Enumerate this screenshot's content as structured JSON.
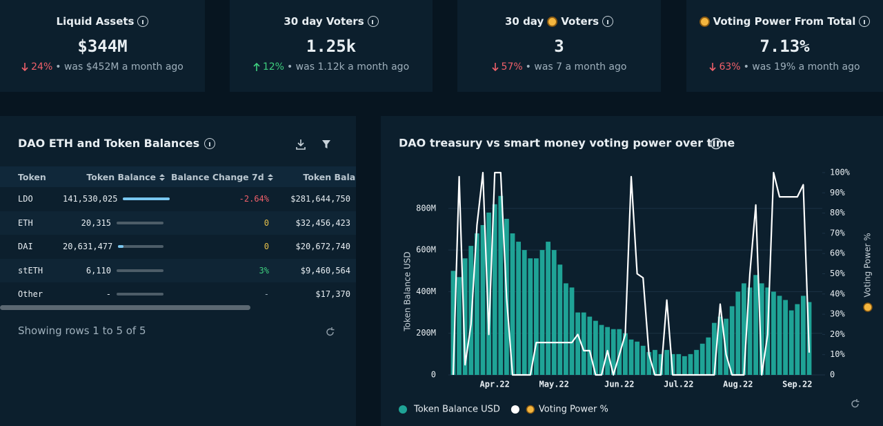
{
  "cards": [
    {
      "title": "Liquid Assets",
      "value": "$344M",
      "change": "24%",
      "direction": "down",
      "note": "• was $452M a month ago"
    },
    {
      "title": "30 day Voters",
      "value": "1.25k",
      "change": "12%",
      "direction": "up",
      "note": "• was 1.12k a month ago"
    },
    {
      "title": "30 day",
      "title_after_icon": "Voters",
      "value": "3",
      "change": "57%",
      "direction": "down",
      "note": "• was 7 a month ago"
    },
    {
      "title_after_icon": "Voting Power From Total",
      "value": "7.13%",
      "change": "63%",
      "direction": "down",
      "note": "• was 19% a month ago"
    }
  ],
  "table": {
    "title": "DAO ETH and Token Balances",
    "columns": [
      "Token",
      "Token Balance",
      "Balance Change 7d",
      "Token Balance"
    ],
    "rows": [
      [
        "LDO",
        "141,530,025",
        "-2.64%",
        "$281,644,750"
      ],
      [
        "ETH",
        "20,315",
        "0",
        "$32,456,423"
      ],
      [
        "DAI",
        "20,631,477",
        "0",
        "$20,672,740"
      ],
      [
        "stETH",
        "6,110",
        "3%",
        "$9,460,564"
      ],
      [
        "Other",
        "-",
        "-",
        "$17,370"
      ]
    ],
    "balance_share": [
      1,
      0,
      0.12,
      0,
      0
    ],
    "footer": "Showing rows 1 to 5 of 5"
  },
  "chart_data": {
    "type": "bar",
    "title": "DAO treasury vs smart money voting power over time",
    "ylabel": "Token Balance USD",
    "y2label": "Voting Power %",
    "categories": [
      null,
      null,
      null,
      null,
      null,
      null,
      null,
      "Apr.22",
      null,
      null,
      null,
      null,
      null,
      null,
      null,
      null,
      null,
      "May.22",
      null,
      null,
      null,
      null,
      null,
      null,
      null,
      null,
      null,
      null,
      "Jun.22",
      null,
      null,
      null,
      null,
      null,
      null,
      null,
      null,
      null,
      "Jul.22",
      null,
      null,
      null,
      null,
      null,
      null,
      null,
      null,
      null,
      "Aug.22",
      null,
      null,
      null,
      null,
      null,
      null,
      null,
      null,
      null,
      "Sep.22",
      null,
      null
    ],
    "series": [
      {
        "name": "Token Balance USD",
        "type": "bar",
        "color": "#1fa396",
        "values": [
          500000000,
          470000000,
          560000000,
          620000000,
          680000000,
          720000000,
          780000000,
          820000000,
          860000000,
          750000000,
          680000000,
          640000000,
          600000000,
          560000000,
          560000000,
          600000000,
          640000000,
          600000000,
          530000000,
          440000000,
          420000000,
          300000000,
          300000000,
          280000000,
          260000000,
          240000000,
          230000000,
          220000000,
          220000000,
          200000000,
          170000000,
          160000000,
          140000000,
          110000000,
          120000000,
          100000000,
          120000000,
          100000000,
          100000000,
          90000000,
          100000000,
          120000000,
          150000000,
          180000000,
          250000000,
          280000000,
          270000000,
          330000000,
          400000000,
          440000000,
          420000000,
          480000000,
          440000000,
          420000000,
          400000000,
          380000000,
          360000000,
          310000000,
          340000000,
          380000000,
          350000000
        ]
      },
      {
        "name": "Voting Power %",
        "type": "line",
        "axis": "y2",
        "color": "#ffffff",
        "values": [
          0,
          98,
          5,
          25,
          74,
          100,
          20,
          100,
          100,
          38,
          0,
          0,
          0,
          0,
          16,
          16,
          16,
          16,
          16,
          16,
          16,
          20,
          12,
          12,
          0,
          0,
          12,
          0,
          10,
          20,
          98,
          50,
          48,
          10,
          0,
          0,
          37,
          0,
          0,
          0,
          0,
          0,
          0,
          0,
          0,
          35,
          10,
          0,
          0,
          0,
          50,
          84,
          0,
          20,
          100,
          88,
          88,
          88,
          88,
          94,
          11
        ]
      }
    ],
    "ylim": [
      0,
      972000000
    ],
    "yticks": [
      0,
      {
        "value": 200000000,
        "label": "200M"
      },
      {
        "value": 400000000,
        "label": "400M"
      },
      {
        "value": 600000000,
        "label": "600M"
      },
      {
        "value": 800000000,
        "label": "800M"
      }
    ],
    "y2lim": [
      0,
      100
    ],
    "y2ticks": [
      0,
      {
        "value": 10,
        "label": "10%"
      },
      {
        "value": 20,
        "label": "20%"
      },
      {
        "value": 30,
        "label": "30%"
      },
      {
        "value": 40,
        "label": "40%"
      },
      {
        "value": 50,
        "label": "50%"
      },
      {
        "value": 60,
        "label": "60%"
      },
      {
        "value": 70,
        "label": "70%"
      },
      {
        "value": 80,
        "label": "80%"
      },
      {
        "value": 90,
        "label": "90%"
      },
      {
        "value": 100,
        "label": "100%"
      }
    ],
    "grid": true
  }
}
